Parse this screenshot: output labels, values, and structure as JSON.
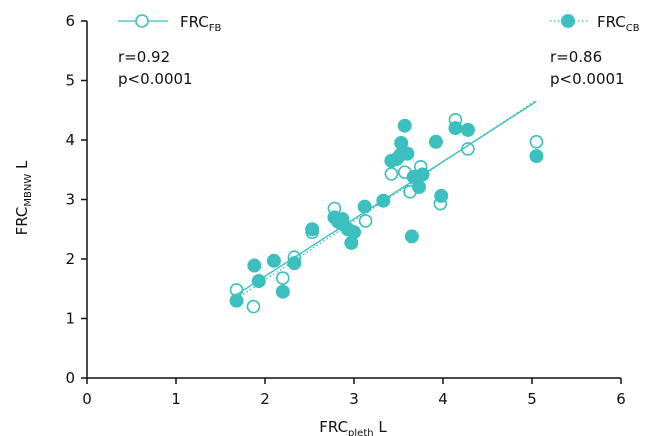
{
  "chart_data": {
    "type": "scatter",
    "xlabel": {
      "main": "FRC",
      "sub": "pleth",
      "unit": " L"
    },
    "ylabel": {
      "main": "FRC",
      "sub": "MBNW",
      "unit": " L"
    },
    "xlim": [
      0,
      6
    ],
    "ylim": [
      0,
      6
    ],
    "xticks": [
      "0",
      "1",
      "2",
      "3",
      "4",
      "5",
      "6"
    ],
    "yticks": [
      "0",
      "1",
      "2",
      "3",
      "4",
      "5",
      "6"
    ],
    "grid": false,
    "colors": {
      "series": "#3cbfbf",
      "axis": "#111111"
    },
    "series": [
      {
        "name_main": "FRC",
        "name_sub": "FB",
        "marker": "open-circle",
        "line_style": "solid",
        "stats": {
          "r": "r=0.92",
          "p": "p<0.0001"
        },
        "fit": {
          "x": [
            1.68,
            5.05
          ],
          "y": [
            1.4,
            4.65
          ]
        },
        "points": [
          {
            "x": 1.68,
            "y": 1.48
          },
          {
            "x": 1.87,
            "y": 1.2
          },
          {
            "x": 2.2,
            "y": 1.68
          },
          {
            "x": 2.33,
            "y": 2.03
          },
          {
            "x": 2.53,
            "y": 2.45
          },
          {
            "x": 2.78,
            "y": 2.85
          },
          {
            "x": 2.85,
            "y": 2.6
          },
          {
            "x": 3.13,
            "y": 2.64
          },
          {
            "x": 3.42,
            "y": 3.43
          },
          {
            "x": 3.57,
            "y": 3.46
          },
          {
            "x": 3.63,
            "y": 3.13
          },
          {
            "x": 3.75,
            "y": 3.55
          },
          {
            "x": 3.97,
            "y": 2.93
          },
          {
            "x": 4.14,
            "y": 4.34
          },
          {
            "x": 4.28,
            "y": 3.85
          },
          {
            "x": 5.05,
            "y": 3.97
          }
        ]
      },
      {
        "name_main": "FRC",
        "name_sub": "CB",
        "marker": "filled-circle",
        "line_style": "dotted",
        "stats": {
          "r": "r=0.86",
          "p": "p<0.0001"
        },
        "fit": {
          "x": [
            1.68,
            5.05
          ],
          "y": [
            1.33,
            4.67
          ]
        },
        "points": [
          {
            "x": 1.68,
            "y": 1.3
          },
          {
            "x": 1.88,
            "y": 1.89
          },
          {
            "x": 1.93,
            "y": 1.63
          },
          {
            "x": 2.1,
            "y": 1.97
          },
          {
            "x": 2.2,
            "y": 1.45
          },
          {
            "x": 2.33,
            "y": 1.93
          },
          {
            "x": 2.53,
            "y": 2.5
          },
          {
            "x": 2.78,
            "y": 2.7
          },
          {
            "x": 2.82,
            "y": 2.63
          },
          {
            "x": 2.87,
            "y": 2.67
          },
          {
            "x": 2.93,
            "y": 2.5
          },
          {
            "x": 2.97,
            "y": 2.27
          },
          {
            "x": 3.0,
            "y": 2.45
          },
          {
            "x": 3.12,
            "y": 2.88
          },
          {
            "x": 3.33,
            "y": 2.98
          },
          {
            "x": 3.42,
            "y": 3.65
          },
          {
            "x": 3.48,
            "y": 3.68
          },
          {
            "x": 3.52,
            "y": 3.75
          },
          {
            "x": 3.53,
            "y": 3.95
          },
          {
            "x": 3.57,
            "y": 4.24
          },
          {
            "x": 3.6,
            "y": 3.77
          },
          {
            "x": 3.65,
            "y": 2.38
          },
          {
            "x": 3.67,
            "y": 3.38
          },
          {
            "x": 3.73,
            "y": 3.21
          },
          {
            "x": 3.77,
            "y": 3.42
          },
          {
            "x": 3.92,
            "y": 3.97
          },
          {
            "x": 3.98,
            "y": 3.06
          },
          {
            "x": 4.14,
            "y": 4.2
          },
          {
            "x": 4.28,
            "y": 4.17
          },
          {
            "x": 5.05,
            "y": 3.73
          }
        ]
      }
    ]
  }
}
